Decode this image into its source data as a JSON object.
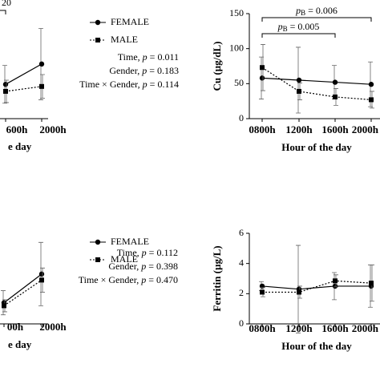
{
  "chart_data": [
    {
      "type": "line",
      "categories": [
        "600h",
        "2000h"
      ],
      "x_label": "e day",
      "annotation": "20",
      "ylim": [
        0,
        150
      ],
      "series": [
        {
          "name": "FEMALE",
          "color": "#000000",
          "marker": "circle",
          "dashed": false,
          "values": [
            49,
            78
          ],
          "errors": [
            27,
            51
          ]
        },
        {
          "name": "MALE",
          "color": "#000000",
          "marker": "square",
          "dashed": true,
          "values": [
            39,
            46
          ],
          "errors": [
            16,
            17
          ]
        }
      ],
      "stats": [
        [
          "Time, ",
          "p",
          " = 0.011"
        ],
        [
          "Gender, ",
          "p",
          " = 0.183"
        ],
        [
          "Time × Gender, ",
          "p",
          " = 0.114"
        ]
      ]
    },
    {
      "type": "line",
      "categories": [
        "0800h",
        "1200h",
        "1600h",
        "2000h"
      ],
      "x_label": "Hour of the day",
      "y_label": "Cu (µg/dL)",
      "ylim": [
        0,
        150
      ],
      "yticks": [
        0,
        50,
        100,
        150
      ],
      "series": [
        {
          "name": "FEMALE",
          "color": "#000000",
          "marker": "circle",
          "dashed": false,
          "values": [
            58,
            55,
            52,
            49
          ],
          "errors": [
            30,
            47,
            24,
            32
          ]
        },
        {
          "name": "MALE",
          "color": "#000000",
          "marker": "square",
          "dashed": true,
          "values": [
            73,
            39,
            31,
            27
          ],
          "errors": [
            33,
            12,
            12,
            12
          ]
        }
      ],
      "brackets": [
        {
          "from": 0,
          "to": 3,
          "p": "p",
          "sub": "B",
          "text": " = 0.006"
        },
        {
          "from": 0,
          "to": 2,
          "p": "p",
          "sub": "B",
          "text": " = 0.005"
        }
      ]
    },
    {
      "type": "line",
      "categories": [
        "00h",
        "2000h"
      ],
      "x_label": "e day",
      "ylim": [
        0,
        6
      ],
      "series": [
        {
          "name": "FEMALE",
          "color": "#000000",
          "marker": "circle",
          "dashed": false,
          "values": [
            1.4,
            3.3
          ],
          "errors": [
            0.8,
            2.1
          ]
        },
        {
          "name": "MALE",
          "color": "#000000",
          "marker": "square",
          "dashed": true,
          "values": [
            1.2,
            2.9
          ],
          "errors": [
            0.4,
            0.8
          ]
        }
      ],
      "stats": [
        [
          "Time, ",
          "p",
          " = 0.112"
        ],
        [
          "Gender, ",
          "p",
          " = 0.398"
        ],
        [
          "Time × Gender, ",
          "p",
          " = 0.470"
        ]
      ]
    },
    {
      "type": "line",
      "categories": [
        "0800h",
        "1200h",
        "1600h",
        "2000h"
      ],
      "x_label": "Hour of the day",
      "y_label": "Ferritin (µg/L)",
      "ylim": [
        0,
        6
      ],
      "yticks": [
        0,
        2,
        4,
        6
      ],
      "series": [
        {
          "name": "FEMALE",
          "color": "#000000",
          "marker": "circle",
          "dashed": false,
          "values": [
            2.5,
            2.3,
            2.5,
            2.5
          ],
          "errors": [
            0.3,
            2.9,
            0.9,
            1.4
          ]
        },
        {
          "name": "MALE",
          "color": "#000000",
          "marker": "square",
          "dashed": true,
          "values": [
            2.1,
            2.1,
            2.85,
            2.7
          ],
          "errors": [
            0.3,
            0.4,
            0.4,
            1.2
          ]
        }
      ]
    }
  ]
}
